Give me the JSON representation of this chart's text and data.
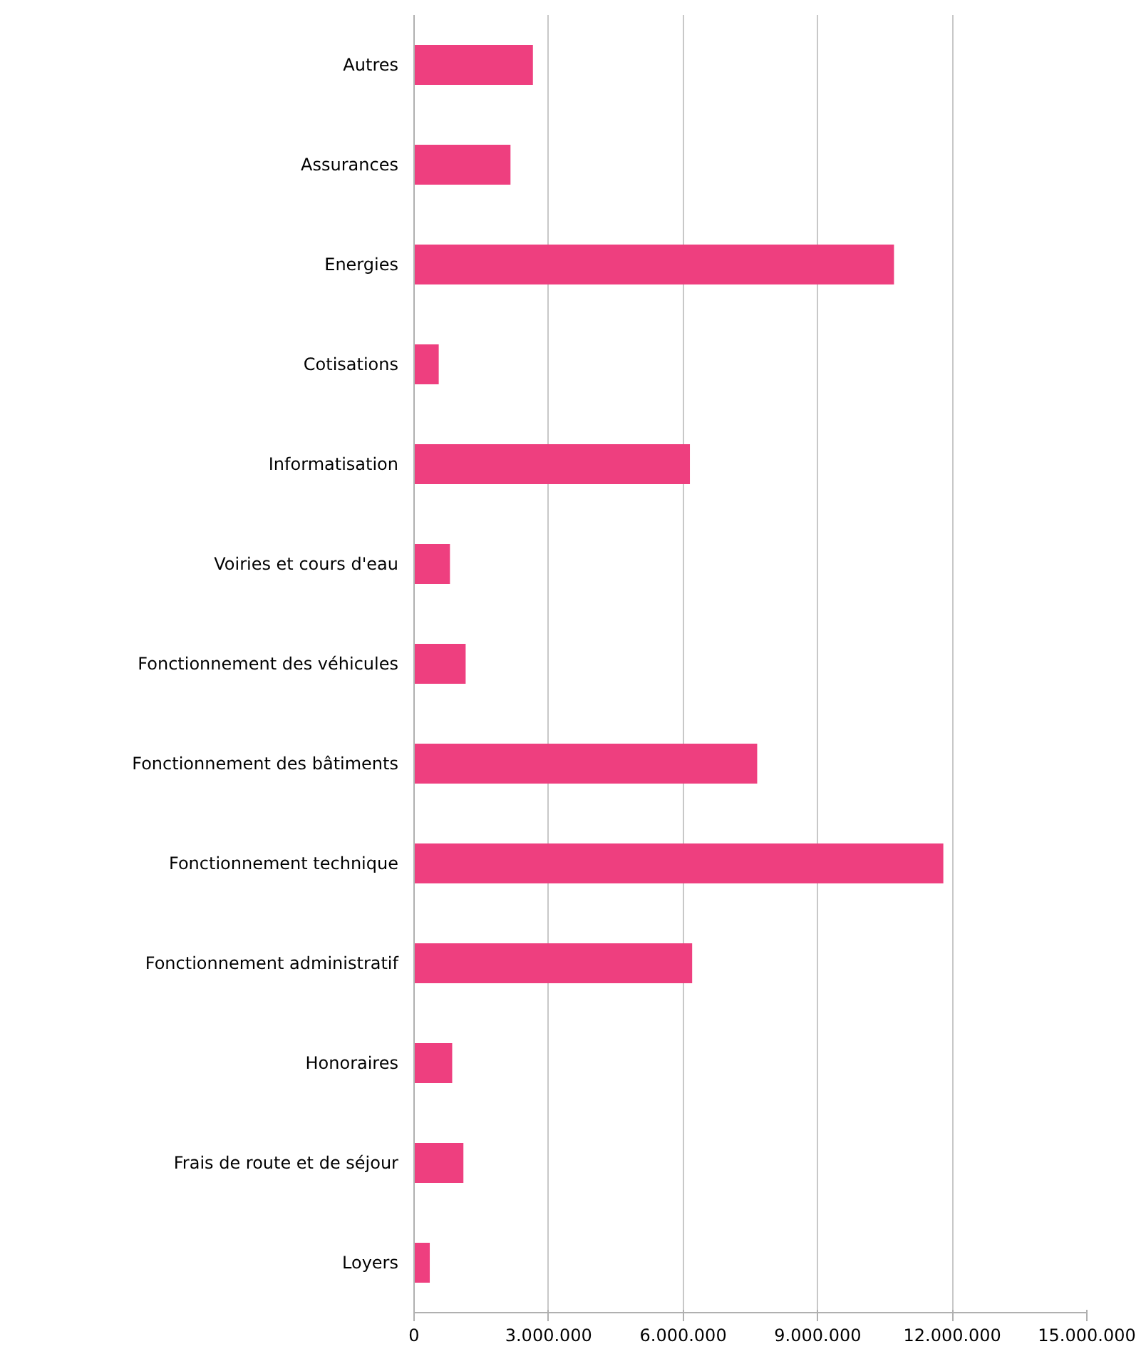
{
  "chart_data": {
    "type": "bar",
    "orientation": "horizontal",
    "categories": [
      "Autres",
      "Assurances",
      "Energies",
      "Cotisations",
      "Informatisation",
      "Voiries et cours d'eau",
      "Fonctionnement des véhicules",
      "Fonctionnement des bâtiments",
      "Fonctionnement technique",
      "Fonctionnement administratif",
      "Honoraires",
      "Frais de route et de séjour",
      "Loyers"
    ],
    "values": [
      2650000,
      2150000,
      10700000,
      550000,
      6150000,
      800000,
      1150000,
      7650000,
      11800000,
      6200000,
      850000,
      1100000,
      350000
    ],
    "color": "#ee3f7f",
    "xlim": [
      0,
      15000000
    ],
    "xticks": [
      0,
      {
        "value": 3000000,
        "label": "3.000.000"
      },
      {
        "value": 6000000,
        "label": "6.000.000"
      },
      {
        "value": 9000000,
        "label": "9.000.000"
      },
      {
        "value": 12000000,
        "label": "12.000.000"
      },
      {
        "value": 15000000,
        "label": "15.000.000"
      }
    ],
    "grid": "x"
  }
}
